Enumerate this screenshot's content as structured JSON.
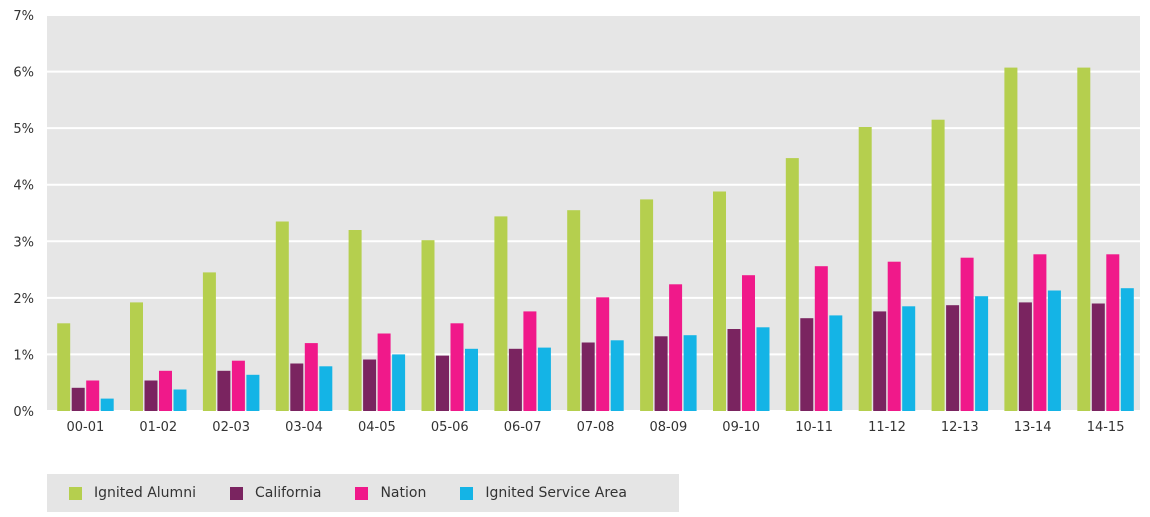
{
  "chart_data": {
    "type": "bar",
    "categories": [
      "00-01",
      "01-02",
      "02-03",
      "03-04",
      "04-05",
      "05-06",
      "06-07",
      "07-08",
      "08-09",
      "09-10",
      "10-11",
      "11-12",
      "12-13",
      "13-14",
      "14-15"
    ],
    "series": [
      {
        "name": "Ignited Alumni",
        "color": "#b5cf4e",
        "values": [
          1.55,
          1.92,
          2.45,
          3.35,
          3.2,
          3.02,
          3.44,
          3.55,
          3.74,
          3.88,
          4.47,
          5.02,
          5.15,
          6.07,
          6.07
        ]
      },
      {
        "name": "California",
        "color": "#7a2460",
        "values": [
          0.41,
          0.54,
          0.71,
          0.84,
          0.91,
          0.98,
          1.1,
          1.21,
          1.32,
          1.45,
          1.64,
          1.76,
          1.87,
          1.92,
          1.9
        ]
      },
      {
        "name": "Nation",
        "color": "#f0198a",
        "values": [
          0.54,
          0.71,
          0.89,
          1.2,
          1.37,
          1.55,
          1.76,
          2.01,
          2.24,
          2.4,
          2.56,
          2.64,
          2.71,
          2.77,
          2.77
        ]
      },
      {
        "name": "Ignited Service Area",
        "color": "#14b4e6",
        "values": [
          0.22,
          0.38,
          0.64,
          0.79,
          1.0,
          1.1,
          1.12,
          1.25,
          1.34,
          1.48,
          1.69,
          1.85,
          2.03,
          2.13,
          2.17
        ]
      }
    ],
    "yticks": [
      "0%",
      "1%",
      "2%",
      "3%",
      "4%",
      "5%",
      "6%",
      "7%"
    ],
    "ylim": [
      0,
      7
    ],
    "ylabel": "",
    "xlabel": "",
    "title": "",
    "grid": true,
    "legend_position": "bottom-left"
  }
}
